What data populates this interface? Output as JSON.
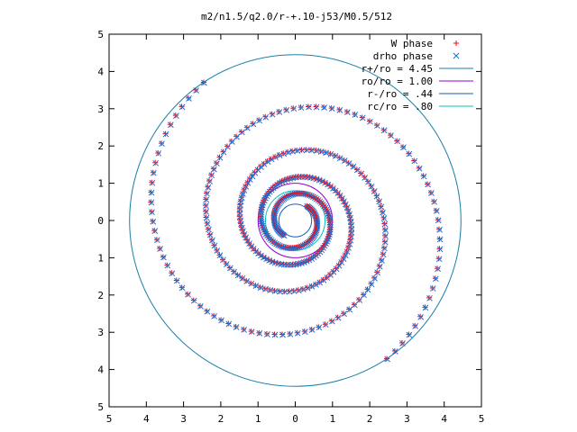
{
  "chart_data": {
    "type": "scatter",
    "title": "m2/n1.5/q2.0/r-+.10-j53/M0.5/512",
    "xlabel": "",
    "ylabel": "",
    "xlim": [
      -5,
      5
    ],
    "ylim": [
      -5,
      5
    ],
    "x_tick_labels": [
      "5",
      "4",
      "3",
      "2",
      "1",
      "0",
      "1",
      "2",
      "3",
      "4",
      "5"
    ],
    "y_tick_labels": [
      "5",
      "4",
      "3",
      "2",
      "1",
      "0",
      "1",
      "2",
      "3",
      "4",
      "5"
    ],
    "grid": false,
    "legend_position": "top-right",
    "series": [
      {
        "name": "W phase",
        "marker": "plus",
        "color": "#ff0000",
        "description_arms": 2,
        "spiral_r_min": 0.5,
        "spiral_r_max": 4.45
      },
      {
        "name": "drho phase",
        "marker": "cross",
        "color": "#1f6fd6",
        "description_arms": 2,
        "spiral_r_min": 0.5,
        "spiral_r_max": 4.45
      }
    ],
    "circles": [
      {
        "name": "r+/ro = 4.45",
        "radius": 4.45,
        "color": "#1a7fa8"
      },
      {
        "name": "ro/ro = 1.00",
        "radius": 1.0,
        "color": "#9400d3"
      },
      {
        "name": "r-/ro = .44",
        "radius": 0.44,
        "color": "#1f5fb0"
      },
      {
        "name": "rc/ro = .80",
        "radius": 0.8,
        "color": "#00bfbf"
      }
    ]
  }
}
